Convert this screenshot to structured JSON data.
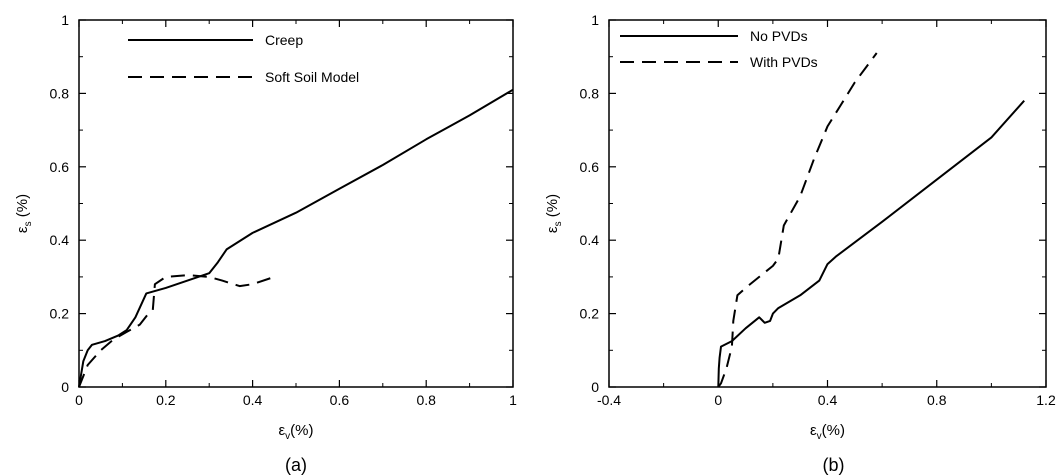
{
  "chart_data": [
    {
      "type": "line",
      "caption": "(a)",
      "xlabel": {
        "symbol": "ε",
        "sub": "v",
        "unit": "(%)"
      },
      "ylabel": {
        "symbol": "ε",
        "sub": "s",
        "unit": " (%)"
      },
      "xlim": [
        0,
        1
      ],
      "ylim": [
        0,
        1
      ],
      "xticks": [
        "0",
        "0.2",
        "0.4",
        "0.6",
        "0.8",
        "1"
      ],
      "yticks": [
        "0",
        "0.2",
        "0.4",
        "0.6",
        "0.8",
        "1"
      ],
      "grid": false,
      "legend_position": "top-left",
      "series": [
        {
          "name": "Creep",
          "style": "solid",
          "x": [
            0,
            0.01,
            0.02,
            0.03,
            0.06,
            0.09,
            0.11,
            0.13,
            0.155,
            0.2,
            0.25,
            0.3,
            0.32,
            0.34,
            0.4,
            0.5,
            0.6,
            0.7,
            0.8,
            0.9,
            1.0
          ],
          "y": [
            0,
            0.07,
            0.1,
            0.115,
            0.125,
            0.14,
            0.155,
            0.19,
            0.255,
            0.27,
            0.29,
            0.31,
            0.34,
            0.375,
            0.42,
            0.475,
            0.54,
            0.605,
            0.675,
            0.74,
            0.81
          ]
        },
        {
          "name": "Soft Soil Model",
          "style": "dashed",
          "x": [
            0,
            0.02,
            0.05,
            0.08,
            0.11,
            0.14,
            0.16,
            0.17,
            0.175,
            0.2,
            0.25,
            0.3,
            0.33,
            0.37,
            0.4,
            0.45
          ],
          "y": [
            0,
            0.06,
            0.1,
            0.13,
            0.15,
            0.17,
            0.2,
            0.21,
            0.28,
            0.3,
            0.305,
            0.3,
            0.29,
            0.275,
            0.28,
            0.3
          ]
        }
      ]
    },
    {
      "type": "line",
      "caption": "(b)",
      "xlabel": {
        "symbol": "ε",
        "sub": "v",
        "unit": "(%)"
      },
      "ylabel": {
        "symbol": "ε",
        "sub": "s",
        "unit": " (%)"
      },
      "xlim": [
        -0.4,
        1.2
      ],
      "ylim": [
        0,
        1
      ],
      "xticks": [
        "-0.4",
        "0",
        "0.4",
        "0.8",
        "1.2"
      ],
      "yticks": [
        "0",
        "0.2",
        "0.4",
        "0.6",
        "0.8",
        "1"
      ],
      "grid": false,
      "legend_position": "top-left",
      "series": [
        {
          "name": "No PVDs",
          "style": "solid",
          "x": [
            0,
            0.002,
            0.005,
            0.01,
            0.05,
            0.1,
            0.15,
            0.17,
            0.19,
            0.2,
            0.22,
            0.3,
            0.37,
            0.4,
            0.43,
            0.6,
            0.8,
            1.0,
            1.12
          ],
          "y": [
            0,
            0.05,
            0.08,
            0.11,
            0.125,
            0.16,
            0.19,
            0.175,
            0.18,
            0.2,
            0.215,
            0.25,
            0.29,
            0.335,
            0.355,
            0.45,
            0.565,
            0.68,
            0.78
          ]
        },
        {
          "name": "With PVDs",
          "style": "dashed",
          "x": [
            0,
            0.01,
            0.03,
            0.05,
            0.055,
            0.07,
            0.1,
            0.15,
            0.2,
            0.22,
            0.24,
            0.3,
            0.35,
            0.4,
            0.45,
            0.5,
            0.55,
            0.58
          ],
          "y": [
            0,
            0.01,
            0.05,
            0.11,
            0.18,
            0.25,
            0.27,
            0.3,
            0.33,
            0.35,
            0.44,
            0.52,
            0.62,
            0.71,
            0.77,
            0.83,
            0.88,
            0.91
          ]
        }
      ]
    }
  ]
}
